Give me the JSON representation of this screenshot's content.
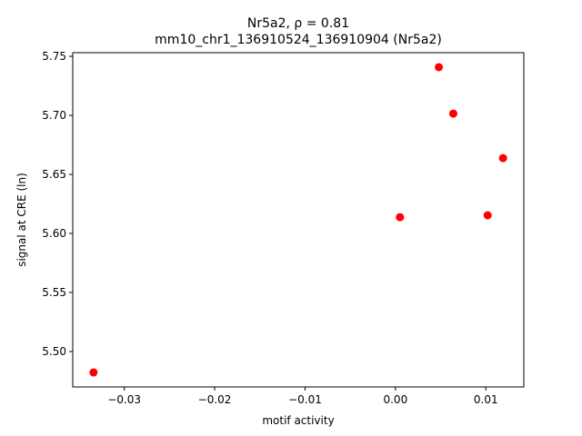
{
  "chart_data": {
    "type": "scatter",
    "title": "Nr5a2, ρ = 0.81",
    "subtitle": "mm10_chr1_136910524_136910904 (Nr5a2)",
    "x_label": "motif activity",
    "y_label": "signal at CRE (ln)",
    "x": [
      -0.0334,
      0.0005,
      0.0048,
      0.0064,
      0.0102,
      0.0119
    ],
    "y": [
      5.4823,
      5.6138,
      5.7408,
      5.7015,
      5.6154,
      5.6638
    ],
    "color": "#ff0000",
    "xlim": [
      -0.0357,
      0.0142
    ],
    "ylim": [
      5.47,
      5.7531
    ],
    "xticks": [
      {
        "value": -0.03,
        "label": "−0.03"
      },
      {
        "value": -0.02,
        "label": "−0.02"
      },
      {
        "value": -0.01,
        "label": "−0.01"
      },
      {
        "value": 0,
        "label": "0.00"
      },
      {
        "value": 0.01,
        "label": "0.01"
      }
    ],
    "yticks": [
      {
        "value": 5.5,
        "label": "5.50"
      },
      {
        "value": 5.55,
        "label": "5.55"
      },
      {
        "value": 5.6,
        "label": "5.60"
      },
      {
        "value": 5.65,
        "label": "5.65"
      },
      {
        "value": 5.7,
        "label": "5.70"
      },
      {
        "value": 5.75,
        "label": "5.75"
      }
    ],
    "grid": false
  }
}
